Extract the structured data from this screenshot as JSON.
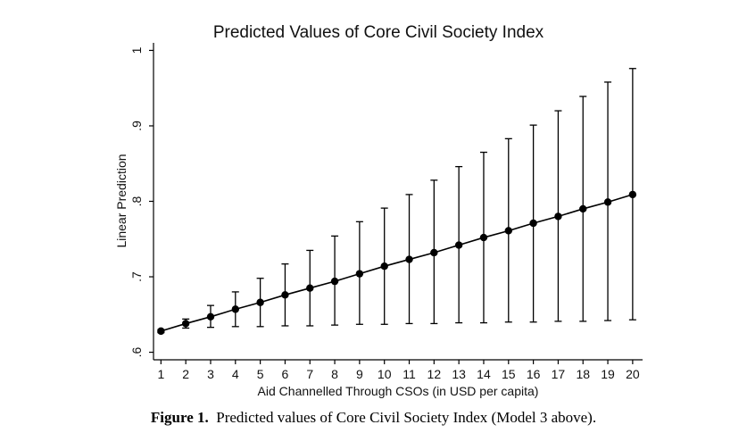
{
  "chart_data": {
    "type": "line",
    "title": "Predicted Values of Core Civil Society Index",
    "xlabel": "Aid Channelled Through CSOs (in USD per capita)",
    "ylabel": "Linear Prediction",
    "xlim": [
      0.7,
      20.4
    ],
    "ylim": [
      0.59,
      1.01
    ],
    "x": [
      1,
      2,
      3,
      4,
      5,
      6,
      7,
      8,
      9,
      10,
      11,
      12,
      13,
      14,
      15,
      16,
      17,
      18,
      19,
      20
    ],
    "x_ticks": [
      "1",
      "2",
      "3",
      "4",
      "5",
      "6",
      "7",
      "8",
      "9",
      "10",
      "11",
      "12",
      "13",
      "14",
      "15",
      "16",
      "17",
      "18",
      "19",
      "20"
    ],
    "y_ticks": [
      {
        "value": 0.6,
        "label": ".6"
      },
      {
        "value": 0.7,
        "label": ".7"
      },
      {
        "value": 0.8,
        "label": ".8"
      },
      {
        "value": 0.9,
        "label": ".9"
      },
      {
        "value": 1.0,
        "label": "1"
      }
    ],
    "series": [
      {
        "values": [
          0.628,
          0.638,
          0.647,
          0.657,
          0.666,
          0.676,
          0.685,
          0.694,
          0.704,
          0.714,
          0.723,
          0.732,
          0.742,
          0.752,
          0.761,
          0.771,
          0.78,
          0.79,
          0.799,
          0.809
        ],
        "ci_lower": [
          0.626,
          0.632,
          0.633,
          0.634,
          0.634,
          0.635,
          0.635,
          0.636,
          0.637,
          0.637,
          0.638,
          0.638,
          0.639,
          0.639,
          0.64,
          0.64,
          0.641,
          0.641,
          0.642,
          0.643
        ],
        "ci_upper": [
          0.63,
          0.644,
          0.662,
          0.68,
          0.698,
          0.717,
          0.735,
          0.754,
          0.773,
          0.791,
          0.809,
          0.828,
          0.846,
          0.865,
          0.883,
          0.901,
          0.92,
          0.939,
          0.958,
          0.976
        ]
      }
    ],
    "grid": false
  },
  "caption": {
    "label": "Figure 1.",
    "text": "Predicted values of Core Civil Society Index (Model 3 above)."
  }
}
